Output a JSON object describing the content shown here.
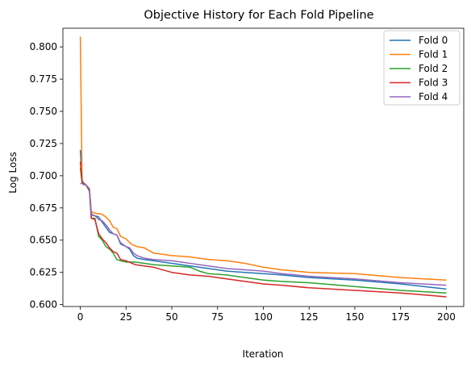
{
  "chart_data": {
    "type": "line",
    "title": "Objective History for Each Fold Pipeline",
    "xlabel": "Iteration",
    "ylabel": "Log Loss",
    "xlim": [
      -9.5,
      209.5
    ],
    "ylim": [
      0.5985,
      0.8145
    ],
    "xticks": [
      0,
      25,
      50,
      75,
      100,
      125,
      150,
      175,
      200
    ],
    "xtick_labels": [
      "0",
      "25",
      "50",
      "75",
      "100",
      "125",
      "150",
      "175",
      "200"
    ],
    "yticks": [
      0.6,
      0.625,
      0.65,
      0.675,
      0.7,
      0.725,
      0.75,
      0.775,
      0.8
    ],
    "ytick_labels": [
      "0.600",
      "0.625",
      "0.650",
      "0.675",
      "0.700",
      "0.725",
      "0.750",
      "0.775",
      "0.800"
    ],
    "grid": false,
    "legend_position": "top-right",
    "series": [
      {
        "name": "Fold 0",
        "color": "#1f77b4",
        "x": [
          0,
          1,
          2,
          3,
          5,
          6,
          7,
          8,
          10,
          12,
          14,
          16,
          18,
          20,
          22,
          25,
          27,
          29,
          31,
          35,
          40,
          50,
          60,
          70,
          80,
          90,
          100,
          110,
          125,
          150,
          175,
          200
        ],
        "y": [
          0.72,
          0.696,
          0.694,
          0.693,
          0.689,
          0.671,
          0.669,
          0.669,
          0.668,
          0.664,
          0.66,
          0.656,
          0.655,
          0.654,
          0.647,
          0.645,
          0.643,
          0.638,
          0.636,
          0.635,
          0.634,
          0.632,
          0.63,
          0.628,
          0.626,
          0.625,
          0.624,
          0.623,
          0.621,
          0.619,
          0.616,
          0.612
        ]
      },
      {
        "name": "Fold 1",
        "color": "#ff7f0e",
        "x": [
          0,
          1,
          2,
          3,
          5,
          6,
          8,
          12,
          14,
          16,
          18,
          20,
          22,
          25,
          27,
          29,
          31,
          35,
          40,
          45,
          50,
          60,
          70,
          80,
          90,
          100,
          110,
          125,
          150,
          175,
          200
        ],
        "y": [
          0.808,
          0.695,
          0.694,
          0.693,
          0.69,
          0.672,
          0.671,
          0.67,
          0.668,
          0.665,
          0.66,
          0.659,
          0.653,
          0.651,
          0.648,
          0.646,
          0.645,
          0.644,
          0.64,
          0.639,
          0.638,
          0.637,
          0.635,
          0.634,
          0.632,
          0.629,
          0.627,
          0.625,
          0.624,
          0.621,
          0.619
        ]
      },
      {
        "name": "Fold 2",
        "color": "#2ca02c",
        "x": [
          0,
          1,
          2,
          3,
          5,
          6,
          8,
          10,
          12,
          14,
          16,
          18,
          20,
          22,
          25,
          30,
          35,
          40,
          50,
          60,
          65,
          70,
          80,
          90,
          100,
          110,
          125,
          150,
          175,
          200
        ],
        "y": [
          0.706,
          0.694,
          0.694,
          0.693,
          0.688,
          0.667,
          0.667,
          0.653,
          0.65,
          0.645,
          0.643,
          0.64,
          0.635,
          0.634,
          0.633,
          0.633,
          0.632,
          0.631,
          0.63,
          0.629,
          0.626,
          0.624,
          0.623,
          0.621,
          0.619,
          0.618,
          0.617,
          0.614,
          0.611,
          0.609
        ]
      },
      {
        "name": "Fold 3",
        "color": "#d62728",
        "x": [
          0,
          1,
          2,
          3,
          5,
          6,
          8,
          10,
          12,
          14,
          16,
          18,
          20,
          22,
          25,
          30,
          35,
          40,
          50,
          60,
          70,
          80,
          90,
          100,
          110,
          125,
          150,
          175,
          200
        ],
        "y": [
          0.711,
          0.696,
          0.694,
          0.693,
          0.689,
          0.667,
          0.666,
          0.655,
          0.651,
          0.648,
          0.644,
          0.641,
          0.64,
          0.635,
          0.634,
          0.631,
          0.63,
          0.629,
          0.625,
          0.623,
          0.622,
          0.62,
          0.618,
          0.616,
          0.615,
          0.613,
          0.611,
          0.609,
          0.606
        ]
      },
      {
        "name": "Fold 4",
        "color": "#9467bd",
        "x": [
          0,
          1,
          2,
          3,
          5,
          6,
          8,
          10,
          12,
          14,
          16,
          18,
          20,
          22,
          25,
          27,
          29,
          31,
          35,
          40,
          50,
          60,
          70,
          80,
          90,
          100,
          110,
          125,
          150,
          175,
          200
        ],
        "y": [
          0.694,
          0.694,
          0.693,
          0.693,
          0.69,
          0.67,
          0.669,
          0.666,
          0.665,
          0.662,
          0.658,
          0.655,
          0.654,
          0.648,
          0.645,
          0.644,
          0.64,
          0.638,
          0.636,
          0.635,
          0.634,
          0.632,
          0.63,
          0.628,
          0.627,
          0.626,
          0.624,
          0.622,
          0.62,
          0.617,
          0.615
        ]
      }
    ]
  }
}
